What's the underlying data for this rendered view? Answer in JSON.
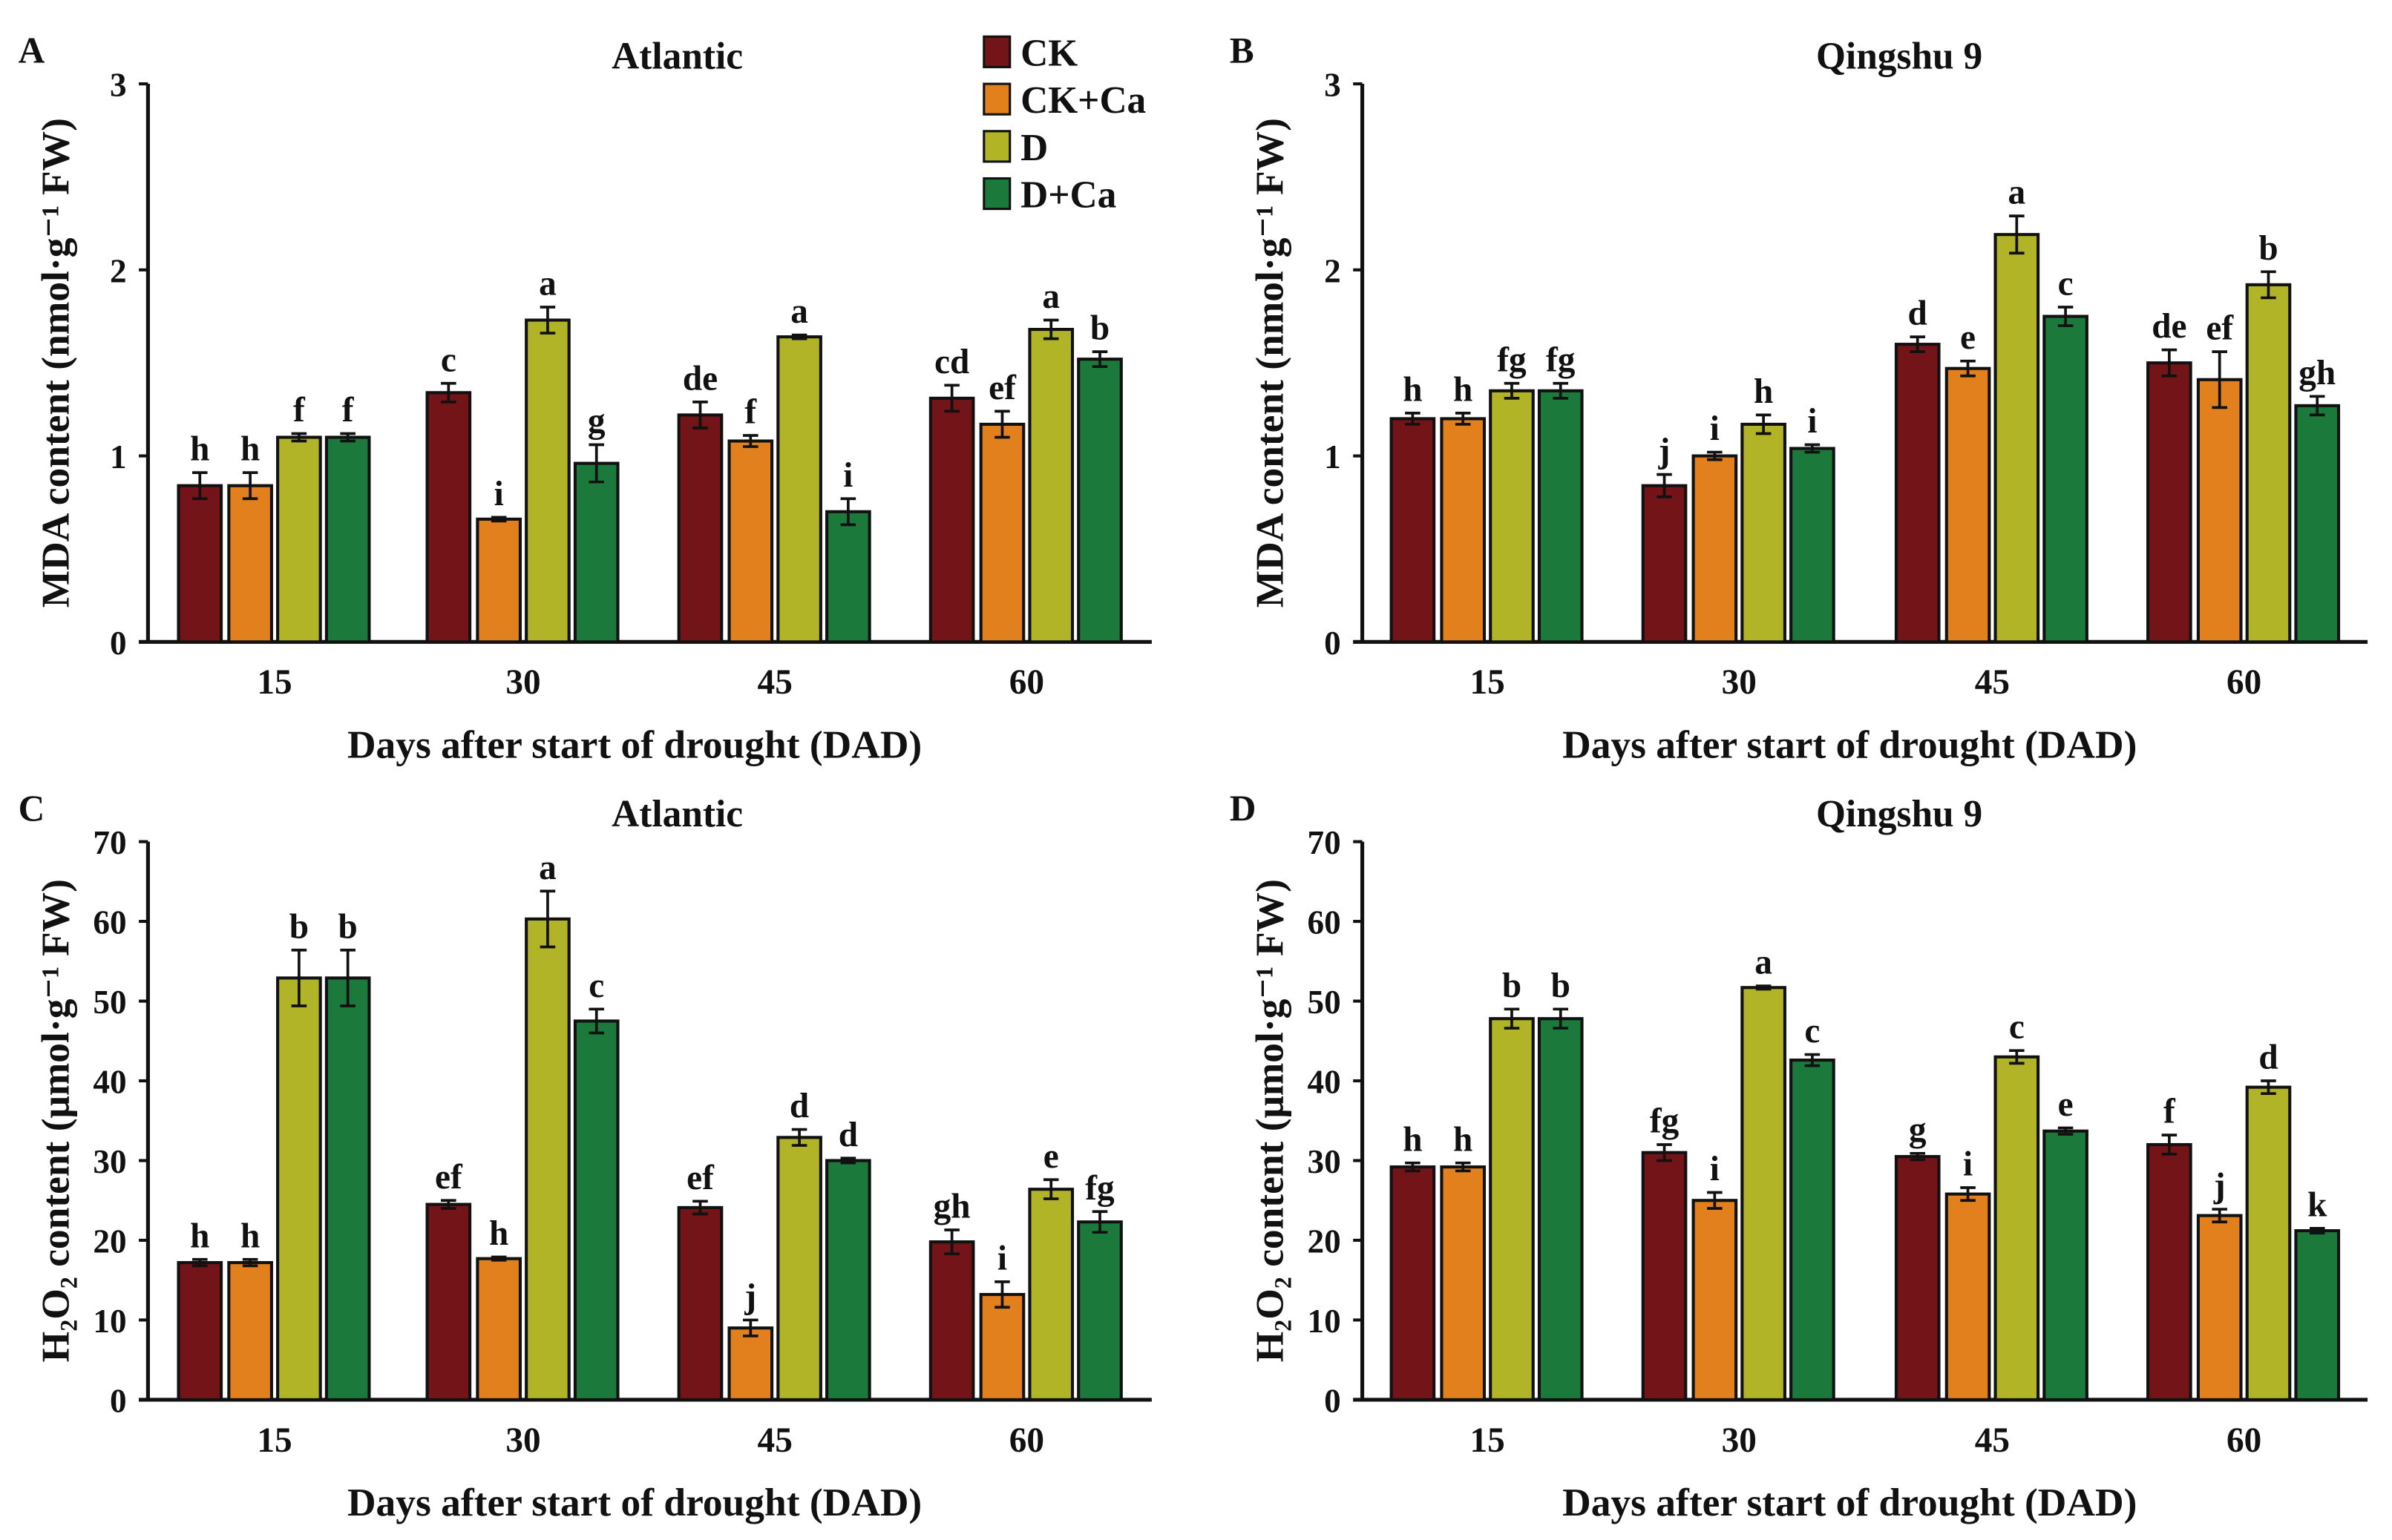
{
  "legend": [
    {
      "name": "CK",
      "color": "#731418"
    },
    {
      "name": "CK+Ca",
      "color": "#E2801D"
    },
    {
      "name": "D",
      "color": "#B1B426"
    },
    {
      "name": "D+Ca",
      "color": "#1B7A3B"
    }
  ],
  "chart_data": [
    {
      "panel": "A",
      "type": "bar",
      "title": "Atlantic",
      "xlabel": "Days after start of drought (DAD)",
      "ylabel": "MDA content (nmol·g⁻¹ FW)",
      "categories": [
        "15",
        "30",
        "45",
        "60"
      ],
      "ylim": [
        0,
        3
      ],
      "yticks": [
        0,
        1,
        2,
        3
      ],
      "series": [
        {
          "name": "CK",
          "values": [
            0.84,
            1.34,
            1.22,
            1.31
          ],
          "errors": [
            0.07,
            0.05,
            0.07,
            0.07
          ],
          "letters": [
            "h",
            "c",
            "de",
            "cd"
          ]
        },
        {
          "name": "CK+Ca",
          "values": [
            0.84,
            0.66,
            1.08,
            1.17
          ],
          "errors": [
            0.07,
            0.01,
            0.03,
            0.07
          ],
          "letters": [
            "h",
            "i",
            "f",
            "ef"
          ]
        },
        {
          "name": "D",
          "values": [
            1.1,
            1.73,
            1.64,
            1.68
          ],
          "errors": [
            0.02,
            0.07,
            0.01,
            0.05
          ],
          "letters": [
            "f",
            "a",
            "a",
            "a"
          ]
        },
        {
          "name": "D+Ca",
          "values": [
            1.1,
            0.96,
            0.7,
            1.52
          ],
          "errors": [
            0.02,
            0.1,
            0.07,
            0.04
          ],
          "letters": [
            "f",
            "g",
            "i",
            "b"
          ]
        }
      ]
    },
    {
      "panel": "B",
      "type": "bar",
      "title": "Qingshu 9",
      "xlabel": "Days after start of drought (DAD)",
      "ylabel": "MDA content (nmol·g⁻¹ FW)",
      "categories": [
        "15",
        "30",
        "45",
        "60"
      ],
      "ylim": [
        0,
        3
      ],
      "yticks": [
        0,
        1,
        2,
        3
      ],
      "series": [
        {
          "name": "CK",
          "values": [
            1.2,
            0.84,
            1.6,
            1.5
          ],
          "errors": [
            0.03,
            0.06,
            0.04,
            0.07
          ],
          "letters": [
            "h",
            "j",
            "d",
            "de"
          ]
        },
        {
          "name": "CK+Ca",
          "values": [
            1.2,
            1.0,
            1.47,
            1.41
          ],
          "errors": [
            0.03,
            0.02,
            0.04,
            0.15
          ],
          "letters": [
            "h",
            "i",
            "e",
            "ef"
          ]
        },
        {
          "name": "D",
          "values": [
            1.35,
            1.17,
            2.19,
            1.92
          ],
          "errors": [
            0.04,
            0.05,
            0.1,
            0.07
          ],
          "letters": [
            "fg",
            "h",
            "a",
            "b"
          ]
        },
        {
          "name": "D+Ca",
          "values": [
            1.35,
            1.04,
            1.75,
            1.27
          ],
          "errors": [
            0.04,
            0.02,
            0.05,
            0.05
          ],
          "letters": [
            "fg",
            "i",
            "c",
            "gh"
          ]
        }
      ]
    },
    {
      "panel": "C",
      "type": "bar",
      "title": "Atlantic",
      "xlabel": "Days after start of drought (DAD)",
      "ylabel": "H₂O₂ content (μmol·g⁻¹ FW)",
      "categories": [
        "15",
        "30",
        "45",
        "60"
      ],
      "ylim": [
        0,
        70
      ],
      "yticks": [
        0,
        10,
        20,
        30,
        40,
        50,
        60,
        70
      ],
      "series": [
        {
          "name": "CK",
          "values": [
            17.2,
            24.5,
            24.1,
            19.8
          ],
          "errors": [
            0.4,
            0.5,
            0.8,
            1.5
          ],
          "letters": [
            "h",
            "ef",
            "ef",
            "gh"
          ]
        },
        {
          "name": "CK+Ca",
          "values": [
            17.2,
            17.7,
            9.0,
            13.2
          ],
          "errors": [
            0.4,
            0.2,
            1.0,
            1.6
          ],
          "letters": [
            "h",
            "h",
            "j",
            "i"
          ]
        },
        {
          "name": "D",
          "values": [
            52.9,
            60.3,
            32.9,
            26.4
          ],
          "errors": [
            3.5,
            3.5,
            1.0,
            1.2
          ],
          "letters": [
            "b",
            "a",
            "d",
            "e"
          ]
        },
        {
          "name": "D+Ca",
          "values": [
            52.9,
            47.5,
            30.0,
            22.3
          ],
          "errors": [
            3.5,
            1.5,
            0.3,
            1.3
          ],
          "letters": [
            "b",
            "c",
            "d",
            "fg"
          ]
        }
      ]
    },
    {
      "panel": "D",
      "type": "bar",
      "title": "Qingshu 9",
      "xlabel": "Days after start of drought (DAD)",
      "ylabel": "H₂O₂ content (μmol·g⁻¹ FW)",
      "categories": [
        "15",
        "30",
        "45",
        "60"
      ],
      "ylim": [
        0,
        70
      ],
      "yticks": [
        0,
        10,
        20,
        30,
        40,
        50,
        60,
        70
      ],
      "series": [
        {
          "name": "CK",
          "values": [
            29.2,
            31.0,
            30.5,
            32.0
          ],
          "errors": [
            0.5,
            1.0,
            0.4,
            1.2
          ],
          "letters": [
            "h",
            "fg",
            "g",
            "f"
          ]
        },
        {
          "name": "CK+Ca",
          "values": [
            29.2,
            25.0,
            25.8,
            23.1
          ],
          "errors": [
            0.5,
            1.0,
            0.8,
            0.8
          ],
          "letters": [
            "h",
            "i",
            "i",
            "j"
          ]
        },
        {
          "name": "D",
          "values": [
            47.8,
            51.7,
            43.0,
            39.2
          ],
          "errors": [
            1.2,
            0.2,
            0.8,
            0.8
          ],
          "letters": [
            "b",
            "a",
            "c",
            "d"
          ]
        },
        {
          "name": "D+Ca",
          "values": [
            47.8,
            42.6,
            33.7,
            21.2
          ],
          "errors": [
            1.2,
            0.7,
            0.4,
            0.3
          ],
          "letters": [
            "b",
            "c",
            "e",
            "k"
          ]
        }
      ]
    }
  ]
}
